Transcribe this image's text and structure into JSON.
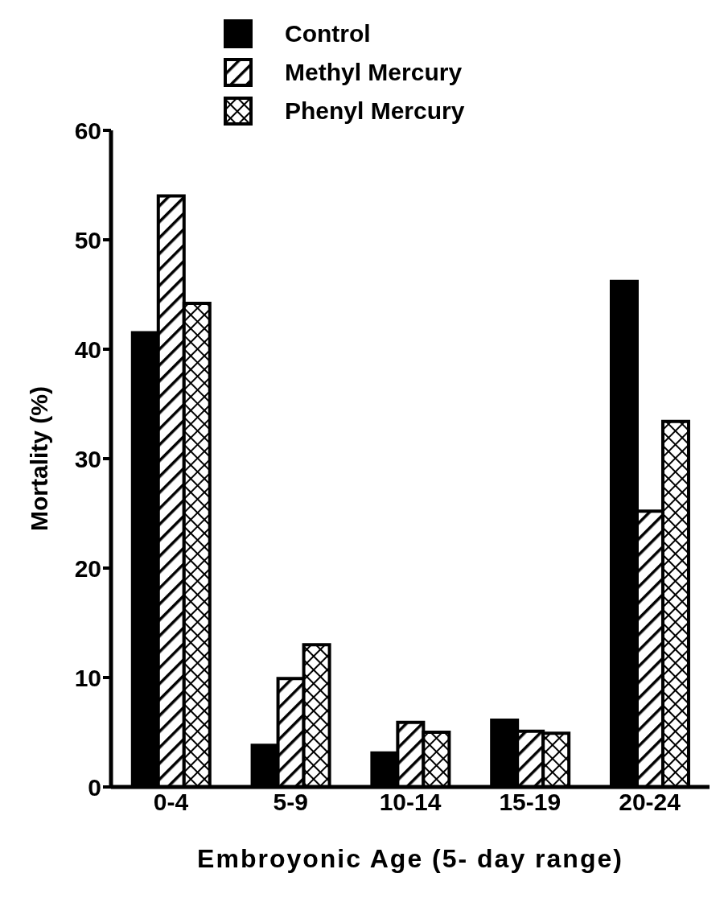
{
  "chart_data": {
    "type": "bar",
    "xlabel": "Embroyonic Age (5- day range)",
    "ylabel": "Mortality (%)",
    "categories": [
      "0-4",
      "5-9",
      "10-14",
      "15-19",
      "20-24"
    ],
    "series": [
      {
        "name": "Control",
        "color": "#000000",
        "values": [
          41.5,
          3.8,
          3.1,
          6.1,
          46.2
        ]
      },
      {
        "name": "Methyl Mercury",
        "color": "#000000",
        "values": [
          54.0,
          9.9,
          5.9,
          5.1,
          25.2
        ]
      },
      {
        "name": "Phenyl Mercury",
        "color": "#000000",
        "values": [
          44.2,
          13.0,
          5.0,
          4.9,
          33.4
        ]
      }
    ],
    "ylim": [
      0,
      60
    ],
    "yticks": [
      0,
      10,
      20,
      30,
      40,
      50,
      60
    ],
    "grid": false,
    "legend": "top"
  }
}
